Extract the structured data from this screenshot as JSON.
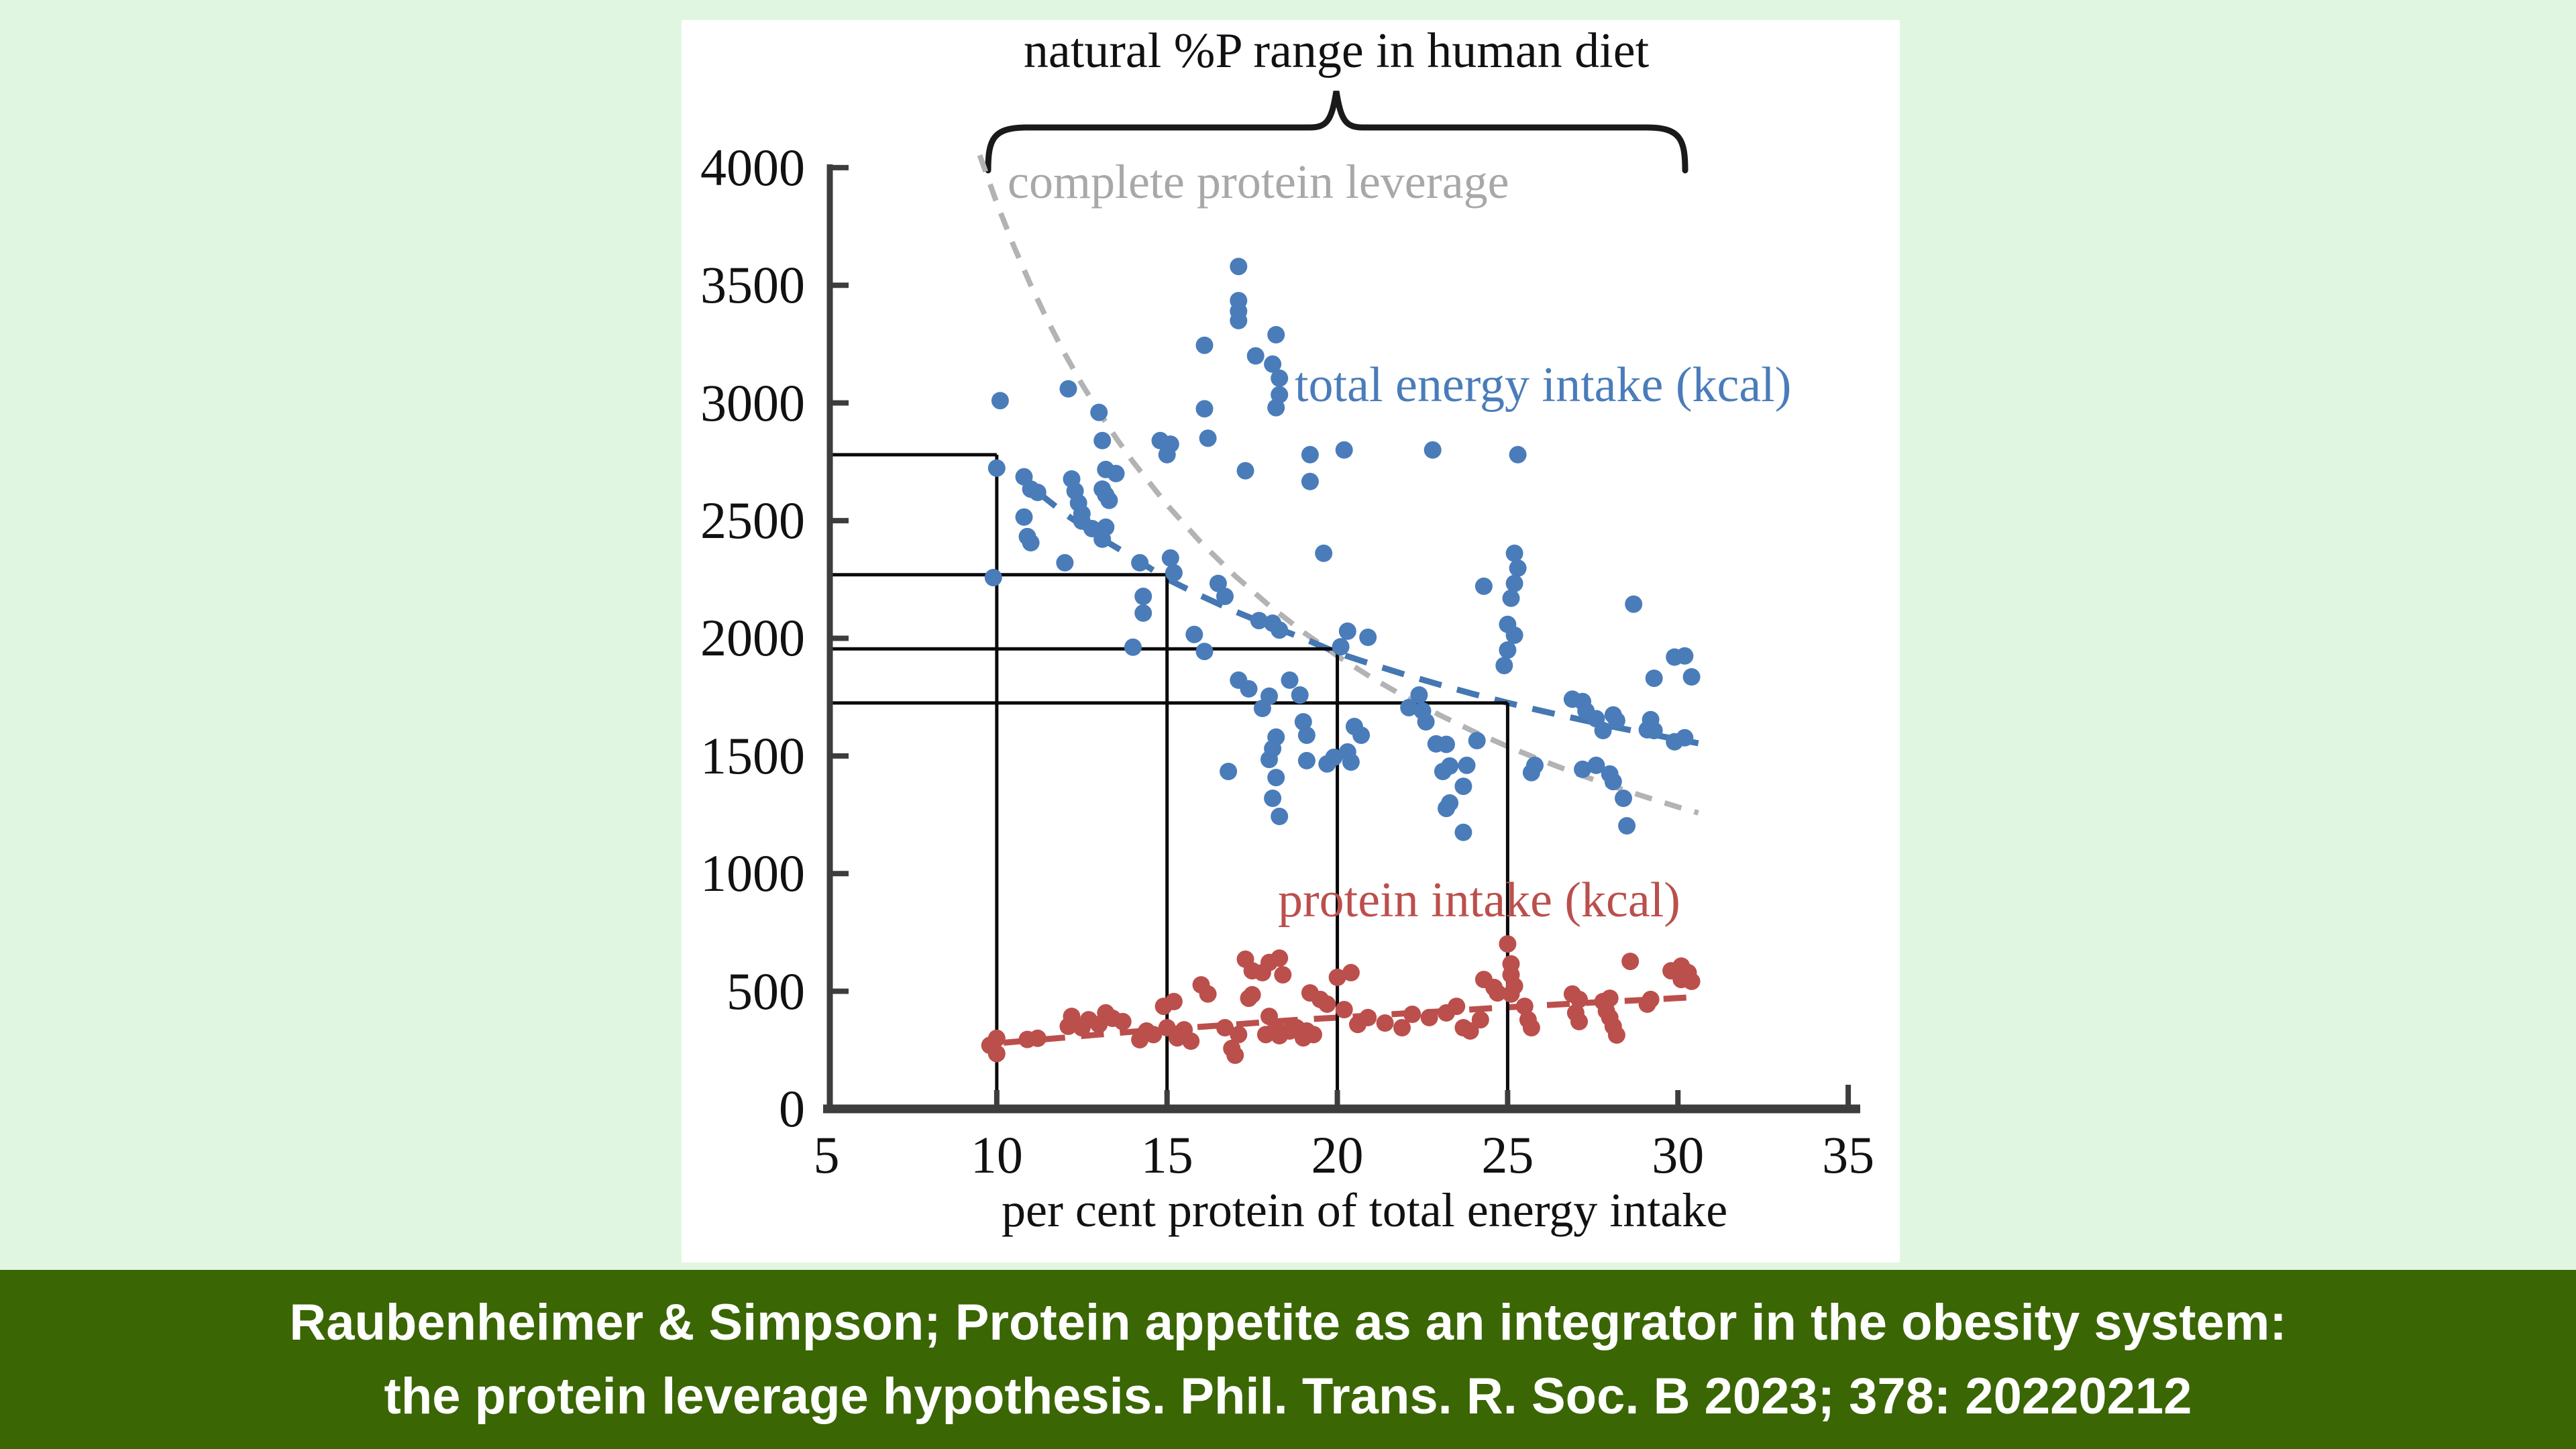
{
  "page": {
    "background_color": "#e0f6e0"
  },
  "plot": {
    "title": "natural %P range in human diet",
    "xlabel": "per cent protein of total energy intake",
    "labels": {
      "complete_protein_leverage": "complete protein leverage",
      "total_energy_intake": "total energy intake (kcal)",
      "protein_intake": "protein intake (kcal)"
    },
    "colors": {
      "panel_background": "#ffffff",
      "axis": "#3d3d3d",
      "reference_lines": "#0a0a0a",
      "gray_curve": "#b3b3b3",
      "blue_points": "#4a7cba",
      "blue_curve": "#4577b2",
      "red_points": "#bb4f4c",
      "red_curve": "#bb4f4c"
    }
  },
  "caption": {
    "line1": "Raubenheimer & Simpson; Protein appetite as an integrator in the obesity system:",
    "line2": "the protein leverage hypothesis. Phil. Trans. R. Soc. B 2023; 378: 20220212",
    "background_color": "#3a6604",
    "text_color": "#ffffff"
  },
  "chart_data": {
    "type": "scatter",
    "title": "natural %P range in human diet",
    "xlabel": "per cent protein of total energy intake",
    "ylabel": "",
    "x_range": [
      5,
      35
    ],
    "y_range": [
      0,
      4000
    ],
    "x_ticks": [
      5,
      10,
      15,
      20,
      25,
      30,
      35
    ],
    "y_ticks": [
      0,
      500,
      1000,
      1500,
      2000,
      2500,
      3000,
      3500,
      4000
    ],
    "grid": false,
    "brace_range_percent": [
      10,
      30
    ],
    "reference_steps": [
      {
        "x": 10,
        "y": 2780
      },
      {
        "x": 15,
        "y": 2270
      },
      {
        "x": 20,
        "y": 1955
      },
      {
        "x": 25,
        "y": 1725
      }
    ],
    "series": [
      {
        "name": "total energy intake (kcal)",
        "color": "#4a7cba",
        "points": [
          [
            10.1,
            3010
          ],
          [
            12.1,
            3060
          ],
          [
            13.0,
            2960
          ],
          [
            13.1,
            2840
          ],
          [
            17.1,
            3580
          ],
          [
            17.1,
            3435
          ],
          [
            17.1,
            3390
          ],
          [
            17.1,
            3350
          ],
          [
            16.1,
            3245
          ],
          [
            17.6,
            3200
          ],
          [
            18.1,
            3165
          ],
          [
            18.2,
            3290
          ],
          [
            18.3,
            3105
          ],
          [
            18.3,
            3035
          ],
          [
            18.2,
            2980
          ],
          [
            16.1,
            2975
          ],
          [
            16.2,
            2850
          ],
          [
            14.8,
            2840
          ],
          [
            15.1,
            2825
          ],
          [
            15.0,
            2780
          ],
          [
            17.3,
            2712
          ],
          [
            19.2,
            2780
          ],
          [
            20.2,
            2800
          ],
          [
            19.2,
            2666
          ],
          [
            22.8,
            2800
          ],
          [
            25.3,
            2780
          ],
          [
            10.0,
            2723
          ],
          [
            10.8,
            2686
          ],
          [
            11.0,
            2634
          ],
          [
            11.2,
            2620
          ],
          [
            12.2,
            2677
          ],
          [
            12.3,
            2626
          ],
          [
            12.4,
            2575
          ],
          [
            12.5,
            2529
          ],
          [
            13.2,
            2717
          ],
          [
            13.5,
            2700
          ],
          [
            13.1,
            2634
          ],
          [
            13.2,
            2609
          ],
          [
            13.3,
            2586
          ],
          [
            12.5,
            2498
          ],
          [
            12.8,
            2466
          ],
          [
            13.1,
            2421
          ],
          [
            10.8,
            2515
          ],
          [
            10.9,
            2432
          ],
          [
            11.0,
            2406
          ],
          [
            12.0,
            2321
          ],
          [
            13.2,
            2472
          ],
          [
            9.9,
            2258
          ],
          [
            14.2,
            2321
          ],
          [
            14.3,
            2178
          ],
          [
            14.3,
            2107
          ],
          [
            15.1,
            2341
          ],
          [
            15.2,
            2278
          ],
          [
            15.8,
            2016
          ],
          [
            16.1,
            1944
          ],
          [
            14.0,
            1962
          ],
          [
            16.5,
            2233
          ],
          [
            16.7,
            2178
          ],
          [
            17.7,
            2075
          ],
          [
            18.1,
            2064
          ],
          [
            18.3,
            2035
          ],
          [
            19.6,
            2361
          ],
          [
            20.3,
            2030
          ],
          [
            20.9,
            2004
          ],
          [
            20.1,
            1964
          ],
          [
            25.2,
            2361
          ],
          [
            25.3,
            2298
          ],
          [
            25.2,
            2233
          ],
          [
            25.1,
            2170
          ],
          [
            25.0,
            2059
          ],
          [
            25.2,
            2013
          ],
          [
            25.0,
            1950
          ],
          [
            24.9,
            1884
          ],
          [
            24.3,
            2221
          ],
          [
            28.7,
            2145
          ],
          [
            16.8,
            1434
          ],
          [
            17.8,
            1702
          ],
          [
            18.2,
            1580
          ],
          [
            18.1,
            1531
          ],
          [
            18.0,
            1485
          ],
          [
            18.2,
            1408
          ],
          [
            18.1,
            1320
          ],
          [
            18.3,
            1243
          ],
          [
            17.1,
            1822
          ],
          [
            17.4,
            1785
          ],
          [
            18.0,
            1754
          ],
          [
            18.6,
            1822
          ],
          [
            18.9,
            1759
          ],
          [
            19.0,
            1645
          ],
          [
            19.1,
            1588
          ],
          [
            19.1,
            1480
          ],
          [
            19.7,
            1466
          ],
          [
            19.9,
            1494
          ],
          [
            20.3,
            1517
          ],
          [
            20.4,
            1474
          ],
          [
            20.5,
            1625
          ],
          [
            20.7,
            1588
          ],
          [
            22.1,
            1705
          ],
          [
            22.4,
            1759
          ],
          [
            22.5,
            1691
          ],
          [
            22.6,
            1645
          ],
          [
            22.9,
            1551
          ],
          [
            23.2,
            1549
          ],
          [
            24.1,
            1565
          ],
          [
            23.8,
            1460
          ],
          [
            23.1,
            1434
          ],
          [
            23.7,
            1371
          ],
          [
            23.3,
            1300
          ],
          [
            23.3,
            1457
          ],
          [
            23.2,
            1277
          ],
          [
            23.7,
            1175
          ],
          [
            25.8,
            1460
          ],
          [
            25.7,
            1429
          ],
          [
            26.9,
            1741
          ],
          [
            27.2,
            1731
          ],
          [
            27.3,
            1691
          ],
          [
            27.6,
            1658
          ],
          [
            28.1,
            1674
          ],
          [
            27.8,
            1608
          ],
          [
            28.2,
            1650
          ],
          [
            29.2,
            1654
          ],
          [
            29.1,
            1611
          ],
          [
            29.3,
            1608
          ],
          [
            29.3,
            1830
          ],
          [
            30.4,
            1836
          ],
          [
            29.9,
            1920
          ],
          [
            30.2,
            1925
          ],
          [
            30.2,
            1577
          ],
          [
            29.9,
            1560
          ],
          [
            27.6,
            1460
          ],
          [
            28.0,
            1423
          ],
          [
            27.2,
            1443
          ],
          [
            28.1,
            1391
          ],
          [
            28.4,
            1320
          ],
          [
            28.5,
            1203
          ]
        ]
      },
      {
        "name": "protein intake (kcal)",
        "color": "#bb4f4c",
        "points": [
          [
            9.8,
            270
          ],
          [
            10.0,
            300
          ],
          [
            10.0,
            235
          ],
          [
            10.9,
            295
          ],
          [
            11.2,
            300
          ],
          [
            12.1,
            351
          ],
          [
            12.2,
            393
          ],
          [
            12.5,
            345
          ],
          [
            12.7,
            379
          ],
          [
            13.0,
            359
          ],
          [
            13.2,
            408
          ],
          [
            13.4,
            385
          ],
          [
            13.7,
            371
          ],
          [
            14.2,
            294
          ],
          [
            14.4,
            331
          ],
          [
            14.6,
            316
          ],
          [
            14.9,
            436
          ],
          [
            15.2,
            456
          ],
          [
            15.0,
            345
          ],
          [
            15.3,
            302
          ],
          [
            15.5,
            336
          ],
          [
            15.7,
            288
          ],
          [
            16.0,
            527
          ],
          [
            16.2,
            488
          ],
          [
            16.7,
            345
          ],
          [
            16.9,
            257
          ],
          [
            17.1,
            316
          ],
          [
            17.0,
            228
          ],
          [
            17.3,
            636
          ],
          [
            17.5,
            587
          ],
          [
            17.8,
            579
          ],
          [
            18.0,
            622
          ],
          [
            18.3,
            641
          ],
          [
            18.4,
            570
          ],
          [
            17.4,
            470
          ],
          [
            17.5,
            485
          ],
          [
            18.0,
            393
          ],
          [
            18.2,
            345
          ],
          [
            17.9,
            316
          ],
          [
            18.3,
            311
          ],
          [
            18.6,
            331
          ],
          [
            18.8,
            345
          ],
          [
            19.0,
            302
          ],
          [
            19.1,
            331
          ],
          [
            19.3,
            316
          ],
          [
            19.2,
            493
          ],
          [
            19.5,
            465
          ],
          [
            19.7,
            445
          ],
          [
            20.0,
            559
          ],
          [
            20.4,
            579
          ],
          [
            20.2,
            422
          ],
          [
            20.6,
            359
          ],
          [
            20.9,
            388
          ],
          [
            21.4,
            365
          ],
          [
            21.9,
            345
          ],
          [
            22.2,
            402
          ],
          [
            22.7,
            388
          ],
          [
            23.2,
            408
          ],
          [
            23.7,
            345
          ],
          [
            23.5,
            436
          ],
          [
            23.9,
            331
          ],
          [
            24.2,
            379
          ],
          [
            24.3,
            550
          ],
          [
            24.6,
            516
          ],
          [
            24.7,
            493
          ],
          [
            25.0,
            701
          ],
          [
            25.1,
            616
          ],
          [
            25.1,
            570
          ],
          [
            25.2,
            522
          ],
          [
            25.1,
            488
          ],
          [
            25.5,
            436
          ],
          [
            25.6,
            379
          ],
          [
            25.7,
            345
          ],
          [
            26.9,
            488
          ],
          [
            27.1,
            465
          ],
          [
            27.0,
            408
          ],
          [
            27.1,
            371
          ],
          [
            27.8,
            456
          ],
          [
            28.0,
            470
          ],
          [
            27.9,
            416
          ],
          [
            28.0,
            388
          ],
          [
            28.1,
            351
          ],
          [
            28.2,
            314
          ],
          [
            28.6,
            627
          ],
          [
            29.8,
            587
          ],
          [
            30.1,
            607
          ],
          [
            30.3,
            579
          ],
          [
            30.4,
            542
          ],
          [
            30.1,
            550
          ],
          [
            29.2,
            465
          ],
          [
            29.1,
            445
          ]
        ]
      }
    ],
    "curves": [
      {
        "name": "complete protein leverage",
        "style": "dashed",
        "color": "#b3b3b3",
        "points": [
          [
            9.5,
            4053
          ],
          [
            10,
            3850
          ],
          [
            10.5,
            3667
          ],
          [
            11,
            3500
          ],
          [
            11.5,
            3348
          ],
          [
            12,
            3208
          ],
          [
            12.5,
            3080
          ],
          [
            13,
            2962
          ],
          [
            13.5,
            2852
          ],
          [
            14,
            2750
          ],
          [
            15,
            2567
          ],
          [
            16,
            2406
          ],
          [
            17,
            2265
          ],
          [
            18,
            2139
          ],
          [
            19,
            2026
          ],
          [
            20,
            1925
          ],
          [
            21,
            1833
          ],
          [
            22,
            1750
          ],
          [
            23,
            1674
          ],
          [
            24,
            1604
          ],
          [
            25,
            1540
          ],
          [
            26,
            1481
          ],
          [
            27,
            1426
          ],
          [
            28,
            1375
          ],
          [
            29,
            1328
          ],
          [
            30,
            1283
          ],
          [
            30.6,
            1258
          ]
        ]
      },
      {
        "name": "total energy intake trend",
        "style": "dashed",
        "color": "#4577b2",
        "points": [
          [
            11.2,
            2621
          ],
          [
            12,
            2529
          ],
          [
            13,
            2430
          ],
          [
            14,
            2344
          ],
          [
            15,
            2252
          ],
          [
            16,
            2180
          ],
          [
            17,
            2114
          ],
          [
            18,
            2055
          ],
          [
            19,
            2000
          ],
          [
            20,
            1938
          ],
          [
            21,
            1890
          ],
          [
            22,
            1845
          ],
          [
            23,
            1803
          ],
          [
            24,
            1763
          ],
          [
            25,
            1726
          ],
          [
            26,
            1691
          ],
          [
            27,
            1659
          ],
          [
            28,
            1627
          ],
          [
            29,
            1598
          ],
          [
            30,
            1570
          ],
          [
            30.6,
            1554
          ]
        ]
      },
      {
        "name": "protein intake trend",
        "style": "dashed",
        "color": "#bb4f4c",
        "points": [
          [
            10.2,
            281
          ],
          [
            11,
            291
          ],
          [
            12,
            303
          ],
          [
            13,
            316
          ],
          [
            14,
            328
          ],
          [
            15,
            338
          ],
          [
            16,
            349
          ],
          [
            17,
            359
          ],
          [
            18,
            370
          ],
          [
            19,
            380
          ],
          [
            20,
            388
          ],
          [
            21,
            397
          ],
          [
            22,
            406
          ],
          [
            23,
            414
          ],
          [
            24,
            423
          ],
          [
            25,
            432
          ],
          [
            26,
            440
          ],
          [
            27,
            448
          ],
          [
            28,
            456
          ],
          [
            29,
            463
          ],
          [
            30,
            471
          ],
          [
            30.5,
            475
          ]
        ]
      }
    ]
  }
}
